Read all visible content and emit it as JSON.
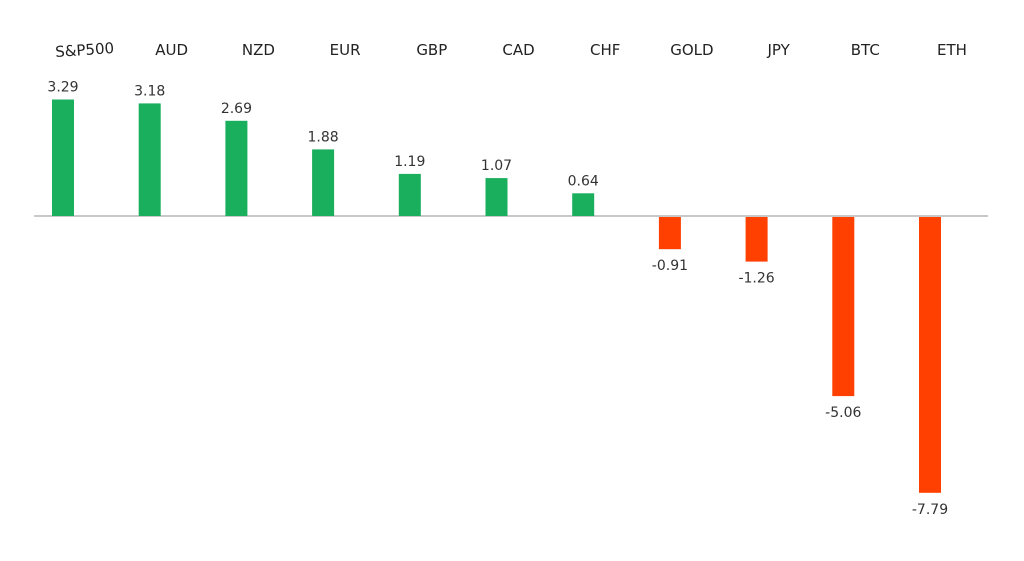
{
  "chart_data": {
    "type": "bar",
    "title": "",
    "xlabel": "",
    "ylabel": "",
    "categories": [
      "S&P500",
      "AUD",
      "NZD",
      "EUR",
      "GBP",
      "CAD",
      "CHF",
      "GOLD",
      "JPY",
      "BTC",
      "ETH"
    ],
    "values": [
      3.29,
      3.18,
      2.69,
      1.88,
      1.19,
      1.07,
      0.64,
      -0.91,
      -1.26,
      -5.06,
      -7.79
    ],
    "value_labels": [
      "3.29",
      "3.18",
      "2.69",
      "1.88",
      "1.19",
      "1.07",
      "0.64",
      "-0.91",
      "-1.26",
      "-5.06",
      "-7.79"
    ],
    "ylim": [
      -7.79,
      3.29
    ],
    "grid": false,
    "legend": "none",
    "category_label_position": "top",
    "colors": {
      "positive": "#1aaf5d",
      "negative": "#ff4000",
      "axis": "#a6a6a6"
    }
  }
}
